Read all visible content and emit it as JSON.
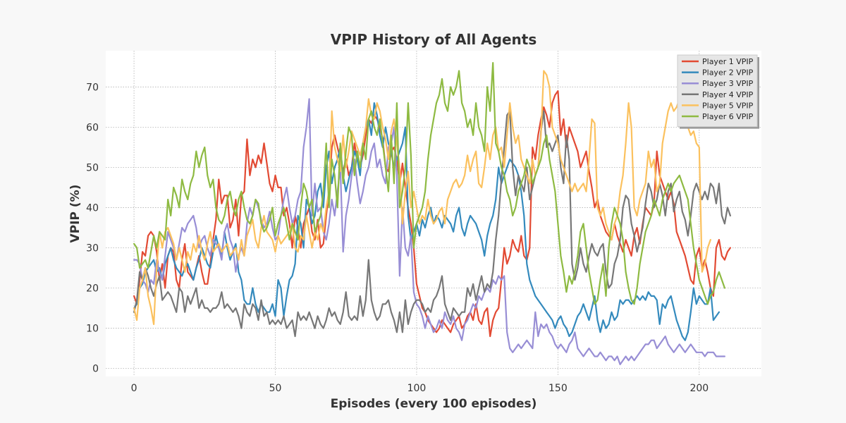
{
  "chart_data": {
    "type": "line",
    "title": "VPIP History of All Agents",
    "xlabel": "Episodes (every 100 episodes)",
    "ylabel": "VPIP (%)",
    "xlim": [
      -10,
      222
    ],
    "ylim": [
      -2,
      79
    ],
    "xticks": [
      0,
      50,
      100,
      150,
      200
    ],
    "yticks": [
      0,
      10,
      20,
      30,
      40,
      50,
      60,
      70
    ],
    "grid": true,
    "legend_position": "top-right",
    "series": [
      {
        "name": "Player 1 VPIP",
        "color": "#e24a33",
        "values": [
          18,
          16,
          22,
          29,
          28,
          33,
          34,
          33,
          29,
          22,
          26,
          20,
          28,
          30,
          29,
          22,
          20,
          27,
          31,
          24,
          23,
          22,
          25,
          28,
          24,
          21,
          21,
          26,
          32,
          37,
          47,
          41,
          43,
          43,
          35,
          37,
          42,
          33,
          43,
          44,
          57,
          48,
          52,
          50,
          53,
          51,
          56,
          51,
          46,
          44,
          48,
          45,
          45,
          38,
          40,
          36,
          30,
          38,
          35,
          30,
          36,
          38,
          40,
          34,
          32,
          37,
          30,
          31,
          38,
          44,
          55,
          58,
          55,
          52,
          49,
          52,
          48,
          50,
          56,
          52,
          50,
          53,
          58,
          62,
          61,
          63,
          62,
          60,
          57,
          50,
          49,
          54,
          55,
          52,
          46,
          51,
          45,
          40,
          36,
          30,
          21,
          18,
          15,
          14,
          12,
          11,
          10,
          9,
          10,
          12,
          11,
          10,
          9,
          11,
          12,
          13,
          10,
          11,
          13,
          14,
          12,
          16,
          12,
          11,
          14,
          15,
          8,
          12,
          14,
          15,
          22,
          30,
          26,
          28,
          32,
          30,
          29,
          33,
          28,
          27,
          30,
          55,
          52,
          58,
          62,
          65,
          63,
          60,
          66,
          68,
          69,
          58,
          62,
          55,
          60,
          58,
          56,
          54,
          50,
          52,
          54,
          49,
          45,
          40,
          42,
          38,
          36,
          34,
          33,
          32,
          36,
          33,
          31,
          29,
          32,
          30,
          28,
          33,
          35,
          31,
          36,
          40,
          39,
          38,
          41,
          54,
          48,
          46,
          44,
          42,
          44,
          41,
          34,
          32,
          30,
          28,
          25,
          22,
          21,
          28,
          30,
          25,
          27,
          24,
          20,
          18,
          30,
          32,
          28,
          27,
          29,
          30
        ]
      },
      {
        "name": "Player 2 VPIP",
        "color": "#348abd",
        "values": [
          15,
          16,
          20,
          21,
          24,
          25,
          26,
          27,
          24,
          25,
          22,
          26,
          28,
          30,
          27,
          25,
          24,
          23,
          25,
          26,
          24,
          22,
          25,
          27,
          30,
          28,
          26,
          25,
          29,
          33,
          30,
          28,
          34,
          30,
          27,
          29,
          31,
          24,
          22,
          17,
          16,
          16,
          20,
          16,
          14,
          16,
          15,
          14,
          14,
          16,
          13,
          22,
          20,
          13,
          18,
          22,
          23,
          26,
          38,
          36,
          30,
          42,
          40,
          36,
          38,
          44,
          46,
          40,
          50,
          54,
          46,
          50,
          52,
          55,
          48,
          44,
          47,
          50,
          54,
          52,
          48,
          56,
          60,
          62,
          58,
          66,
          63,
          58,
          55,
          60,
          56,
          54,
          50,
          52,
          54,
          56,
          60,
          38,
          32,
          34,
          36,
          33,
          37,
          35,
          38,
          40,
          36,
          38,
          37,
          35,
          38,
          37,
          36,
          34,
          38,
          40,
          35,
          33,
          36,
          38,
          37,
          36,
          34,
          32,
          28,
          33,
          36,
          38,
          42,
          50,
          46,
          48,
          50,
          52,
          51,
          50,
          48,
          44,
          38,
          26,
          22,
          20,
          18,
          17,
          16,
          15,
          14,
          13,
          12,
          10,
          12,
          13,
          11,
          10,
          8,
          9,
          11,
          13,
          14,
          16,
          14,
          12,
          15,
          18,
          12,
          9,
          12,
          10,
          11,
          14,
          12,
          13,
          17,
          16,
          17,
          17,
          16,
          17,
          18,
          17,
          18,
          17,
          19,
          18,
          18,
          17,
          11,
          16,
          15,
          17,
          18,
          15,
          12,
          10,
          8,
          7,
          9,
          14,
          20,
          16,
          18,
          17,
          16,
          16,
          20,
          12,
          13,
          14
        ]
      },
      {
        "name": "Player 3 VPIP",
        "color": "#988ed5",
        "values": [
          27,
          27,
          26,
          22,
          21,
          19,
          22,
          21,
          27,
          24,
          22,
          28,
          34,
          32,
          30,
          27,
          31,
          35,
          34,
          36,
          37,
          38,
          35,
          30,
          32,
          33,
          30,
          28,
          32,
          31,
          30,
          27,
          34,
          36,
          32,
          30,
          24,
          28,
          30,
          28,
          36,
          40,
          38,
          42,
          40,
          37,
          35,
          36,
          39,
          35,
          32,
          33,
          38,
          42,
          45,
          40,
          36,
          38,
          42,
          44,
          55,
          60,
          67,
          38,
          46,
          39,
          40,
          34,
          32,
          36,
          42,
          38,
          44,
          50,
          29,
          38,
          42,
          48,
          52,
          46,
          41,
          44,
          48,
          50,
          54,
          56,
          50,
          52,
          48,
          46,
          55,
          56,
          60,
          48,
          23,
          40,
          30,
          28,
          33,
          19,
          16,
          15,
          13,
          10,
          13,
          11,
          9,
          10,
          12,
          10,
          14,
          12,
          11,
          13,
          10,
          9,
          7,
          11,
          12,
          14,
          16,
          15,
          18,
          17,
          19,
          20,
          19,
          22,
          21,
          23,
          22,
          23,
          9,
          5,
          4,
          5,
          6,
          5,
          6,
          7,
          6,
          5,
          14,
          8,
          11,
          10,
          11,
          9,
          8,
          6,
          5,
          6,
          5,
          4,
          6,
          7,
          9,
          5,
          4,
          3,
          4,
          5,
          4,
          3,
          3,
          4,
          3,
          2,
          3,
          3,
          2,
          3,
          1,
          2,
          3,
          2,
          3,
          2,
          3,
          4,
          5,
          6,
          6,
          7,
          7,
          5,
          6,
          7,
          8,
          6,
          5,
          4,
          5,
          6,
          5,
          4,
          5,
          6,
          5,
          4,
          4,
          4,
          3,
          4,
          4,
          4,
          3,
          3,
          3,
          3
        ]
      },
      {
        "name": "Player 4 VPIP",
        "color": "#777777",
        "values": [
          14,
          17,
          24,
          22,
          25,
          23,
          20,
          18,
          21,
          23,
          17,
          18,
          19,
          18,
          16,
          14,
          20,
          19,
          14,
          18,
          16,
          18,
          20,
          15,
          17,
          15,
          15,
          14,
          15,
          15,
          16,
          19,
          15,
          16,
          15,
          14,
          15,
          13,
          10,
          16,
          14,
          13,
          16,
          15,
          12,
          17,
          13,
          14,
          11,
          12,
          11,
          12,
          11,
          13,
          10,
          11,
          12,
          8,
          14,
          12,
          13,
          12,
          14,
          12,
          10,
          13,
          11,
          10,
          12,
          15,
          13,
          14,
          12,
          11,
          14,
          19,
          13,
          12,
          13,
          12,
          18,
          13,
          17,
          27,
          17,
          14,
          12,
          13,
          16,
          16,
          17,
          14,
          12,
          9,
          14,
          9,
          17,
          11,
          14,
          16,
          17,
          17,
          16,
          14,
          15,
          14,
          17,
          18,
          20,
          23,
          16,
          14,
          12,
          15,
          14,
          13,
          14,
          14,
          20,
          18,
          21,
          17,
          20,
          23,
          19,
          21,
          20,
          24,
          32,
          38,
          47,
          55,
          63,
          64,
          50,
          43,
          48,
          46,
          44,
          50,
          42,
          45,
          48,
          50,
          59,
          64,
          55,
          56,
          54,
          56,
          58,
          50,
          46,
          58,
          52,
          26,
          22,
          25,
          30,
          26,
          24,
          28,
          31,
          29,
          28,
          30,
          31,
          24,
          20,
          21,
          26,
          28,
          32,
          40,
          43,
          42,
          36,
          33,
          29,
          32,
          35,
          41,
          46,
          44,
          40,
          42,
          46,
          43,
          38,
          44,
          46,
          39,
          42,
          44,
          39,
          37,
          33,
          38,
          44,
          46,
          44,
          42,
          44,
          42,
          46,
          45,
          41,
          46,
          38,
          36,
          40,
          38
        ]
      },
      {
        "name": "Player 5 VPIP",
        "color": "#fbc15e",
        "values": [
          15,
          12,
          20,
          22,
          25,
          18,
          15,
          11,
          25,
          34,
          30,
          34,
          35,
          33,
          31,
          27,
          30,
          27,
          24,
          29,
          27,
          31,
          29,
          33,
          29,
          27,
          31,
          34,
          29,
          30,
          31,
          29,
          30,
          31,
          28,
          29,
          30,
          27,
          32,
          28,
          33,
          35,
          37,
          32,
          30,
          35,
          38,
          34,
          33,
          32,
          29,
          33,
          31,
          32,
          33,
          34,
          36,
          30,
          29,
          33,
          32,
          38,
          34,
          30,
          34,
          32,
          36,
          34,
          40,
          44,
          64,
          55,
          52,
          49,
          58,
          50,
          54,
          59,
          57,
          55,
          53,
          56,
          60,
          67,
          63,
          62,
          66,
          64,
          60,
          57,
          52,
          59,
          62,
          56,
          50,
          36,
          44,
          49,
          40,
          44,
          40,
          36,
          38,
          37,
          42,
          38,
          36,
          37,
          39,
          40,
          36,
          42,
          44,
          46,
          47,
          45,
          46,
          48,
          53,
          49,
          52,
          54,
          46,
          45,
          50,
          56,
          52,
          58,
          60,
          54,
          55,
          50,
          58,
          66,
          60,
          56,
          58,
          52,
          50,
          48,
          46,
          52,
          48,
          50,
          58,
          74,
          73,
          70,
          60,
          58,
          56,
          52,
          50,
          48,
          46,
          44,
          46,
          44,
          45,
          46,
          44,
          52,
          62,
          61,
          40,
          38,
          40,
          36,
          34,
          32,
          36,
          38,
          44,
          48,
          56,
          66,
          60,
          40,
          38,
          42,
          44,
          46,
          54,
          50,
          52,
          44,
          46,
          56,
          60,
          64,
          66,
          64,
          65,
          67,
          62,
          60,
          60,
          58,
          59,
          56,
          55,
          24,
          26,
          30,
          32
        ]
      },
      {
        "name": "Player 6 VPIP",
        "color": "#8eba42",
        "values": [
          31,
          30,
          25,
          26,
          27,
          25,
          29,
          33,
          30,
          34,
          33,
          32,
          42,
          38,
          45,
          43,
          40,
          47,
          44,
          42,
          46,
          48,
          54,
          50,
          53,
          55,
          48,
          45,
          47,
          40,
          37,
          36,
          38,
          42,
          44,
          40,
          38,
          42,
          44,
          40,
          37,
          36,
          38,
          42,
          41,
          36,
          34,
          35,
          37,
          40,
          33,
          36,
          38,
          40,
          36,
          32,
          36,
          34,
          32,
          40,
          46,
          44,
          40,
          42,
          34,
          36,
          38,
          44,
          56,
          40,
          52,
          48,
          40,
          56,
          46,
          54,
          60,
          58,
          48,
          54,
          50,
          56,
          52,
          62,
          64,
          60,
          58,
          62,
          56,
          50,
          44,
          58,
          46,
          66,
          40,
          44,
          50,
          66,
          53,
          30,
          36,
          38,
          40,
          44,
          52,
          58,
          62,
          66,
          68,
          72,
          66,
          64,
          70,
          68,
          70,
          74,
          66,
          64,
          60,
          62,
          58,
          66,
          60,
          58,
          54,
          70,
          64,
          76,
          56,
          54,
          50,
          48,
          44,
          42,
          38,
          40,
          44,
          46,
          48,
          52,
          50,
          46,
          48,
          50,
          52,
          56,
          58,
          52,
          48,
          44,
          36,
          28,
          24,
          19,
          23,
          21,
          24,
          28,
          34,
          36,
          30,
          24,
          20,
          16,
          17,
          22,
          26,
          18,
          30,
          36,
          40,
          38,
          36,
          32,
          24,
          20,
          17,
          16,
          20,
          26,
          30,
          34,
          36,
          38,
          42,
          40,
          38,
          42,
          44,
          46,
          44,
          46,
          47,
          48,
          46,
          44,
          42,
          36,
          30,
          26,
          22,
          20,
          18,
          16,
          18,
          19,
          22,
          24,
          22,
          20
        ]
      }
    ]
  }
}
